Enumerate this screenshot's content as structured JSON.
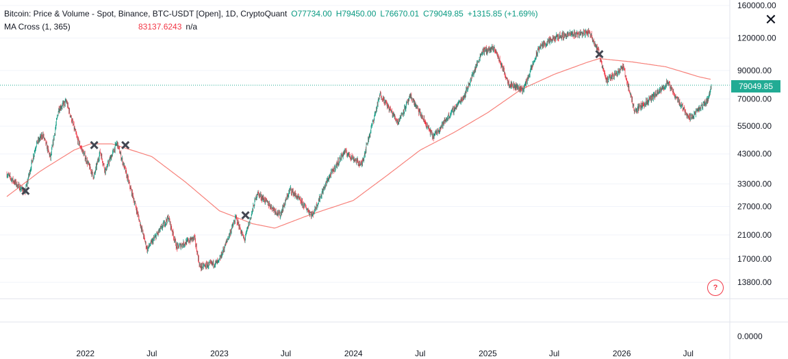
{
  "header": {
    "title": "Bitcoin: Price & Volume - Spot, Binance, BTC-USDT [Open], 1D, CryptoQuant",
    "open": "O77734.00",
    "high": "H79450.00",
    "low": "L76670.01",
    "close": "C79049.85",
    "change": "+1315.85 (+1.69%)",
    "indicator_name": "MA Cross (1, 365)",
    "indicator_value": "83137.6243",
    "indicator_value2": "n/a",
    "close_icon": "close-icon",
    "help_label": "?"
  },
  "colors": {
    "up": "#089981",
    "down": "#f23645",
    "ma": "#f7817a",
    "price_line": "#22ab94",
    "cross_marker": "#434651"
  },
  "chart_data": {
    "type": "candlestick",
    "title": "Bitcoin: Price & Volume - Spot, Binance, BTC-USDT [Open], 1D, CryptoQuant",
    "y_scale": "log",
    "ylim": [
      13000,
      160000
    ],
    "y_ticks": [
      "160000.00",
      "120000.00",
      "90000.00",
      "70000.00",
      "55000.00",
      "43000.00",
      "33000.00",
      "27000.00",
      "21000.00",
      "17000.00",
      "13800.00"
    ],
    "y_ticks_values": [
      160000,
      120000,
      90000,
      70000,
      55000,
      43000,
      33000,
      27000,
      21000,
      17000,
      13800
    ],
    "volume_axis_tick": "0.0000",
    "x_ticks": [
      "2022",
      "Jul",
      "2023",
      "Jul",
      "2024",
      "Jul",
      "2025",
      "Jul",
      "2026",
      "Jul"
    ],
    "x_ticks_dates": [
      "2022-01-01",
      "2022-07-01",
      "2023-01-01",
      "2023-07-01",
      "2024-01-01",
      "2024-07-01",
      "2025-01-01",
      "2025-07-01",
      "2026-01-01",
      "2026-07-01"
    ],
    "x_range": [
      "2021-06-01",
      "2026-09-15"
    ],
    "last_price": "79049.85",
    "last_price_value": 79049.85,
    "price_anchors": [
      [
        "2021-06-01",
        36000
      ],
      [
        "2021-07-20",
        30500
      ],
      [
        "2021-08-20",
        47000
      ],
      [
        "2021-09-07",
        51000
      ],
      [
        "2021-09-28",
        41500
      ],
      [
        "2021-10-20",
        64000
      ],
      [
        "2021-11-10",
        68500
      ],
      [
        "2021-12-10",
        49000
      ],
      [
        "2022-01-24",
        35000
      ],
      [
        "2022-02-10",
        44000
      ],
      [
        "2022-02-24",
        37000
      ],
      [
        "2022-03-28",
        47500
      ],
      [
        "2022-05-12",
        29000
      ],
      [
        "2022-06-18",
        18500
      ],
      [
        "2022-08-15",
        24500
      ],
      [
        "2022-09-07",
        18800
      ],
      [
        "2022-10-25",
        20500
      ],
      [
        "2022-11-09",
        15800
      ],
      [
        "2022-12-30",
        16500
      ],
      [
        "2023-02-15",
        24500
      ],
      [
        "2023-03-10",
        20000
      ],
      [
        "2023-04-14",
        30500
      ],
      [
        "2023-06-15",
        25000
      ],
      [
        "2023-07-13",
        31500
      ],
      [
        "2023-09-11",
        25000
      ],
      [
        "2023-10-24",
        34500
      ],
      [
        "2023-12-08",
        44000
      ],
      [
        "2024-01-23",
        39000
      ],
      [
        "2024-03-14",
        73000
      ],
      [
        "2024-05-01",
        57000
      ],
      [
        "2024-06-05",
        71500
      ],
      [
        "2024-08-05",
        50000
      ],
      [
        "2024-10-29",
        72000
      ],
      [
        "2024-12-17",
        107000
      ],
      [
        "2025-01-20",
        109000
      ],
      [
        "2025-02-28",
        80000
      ],
      [
        "2025-04-08",
        76000
      ],
      [
        "2025-05-22",
        111000
      ],
      [
        "2025-07-14",
        122000
      ],
      [
        "2025-08-14",
        124000
      ],
      [
        "2025-10-06",
        126000
      ],
      [
        "2025-10-28",
        108000
      ],
      [
        "2025-11-21",
        82000
      ],
      [
        "2026-01-05",
        93000
      ],
      [
        "2026-02-05",
        63000
      ],
      [
        "2026-03-15",
        69000
      ],
      [
        "2026-04-20",
        76000
      ],
      [
        "2026-05-05",
        81000
      ],
      [
        "2026-06-01",
        70000
      ],
      [
        "2026-07-05",
        59000
      ],
      [
        "2026-08-10",
        66000
      ],
      [
        "2026-08-25",
        70000
      ],
      [
        "2026-09-02",
        79049.85
      ]
    ],
    "ma_anchors": [
      [
        "2021-06-01",
        29500
      ],
      [
        "2021-09-01",
        37000
      ],
      [
        "2021-12-01",
        44500
      ],
      [
        "2022-01-15",
        47000
      ],
      [
        "2022-03-15",
        47000
      ],
      [
        "2022-07-01",
        42000
      ],
      [
        "2022-10-01",
        33500
      ],
      [
        "2023-01-01",
        26000
      ],
      [
        "2023-04-01",
        23200
      ],
      [
        "2023-06-01",
        22300
      ],
      [
        "2023-09-01",
        25000
      ],
      [
        "2024-01-01",
        28500
      ],
      [
        "2024-04-01",
        35500
      ],
      [
        "2024-07-01",
        44500
      ],
      [
        "2024-10-01",
        52000
      ],
      [
        "2025-01-01",
        62000
      ],
      [
        "2025-04-01",
        76000
      ],
      [
        "2025-07-01",
        87000
      ],
      [
        "2025-10-01",
        97000
      ],
      [
        "2025-11-01",
        100000
      ],
      [
        "2026-02-01",
        97000
      ],
      [
        "2026-05-01",
        93000
      ],
      [
        "2026-08-01",
        85000
      ],
      [
        "2026-09-02",
        83137.62
      ]
    ],
    "cross_markers": [
      [
        "2021-07-22",
        31000
      ],
      [
        "2022-01-25",
        46500
      ],
      [
        "2022-04-20",
        46500
      ],
      [
        "2023-03-13",
        25000
      ],
      [
        "2025-11-01",
        104000
      ]
    ]
  }
}
